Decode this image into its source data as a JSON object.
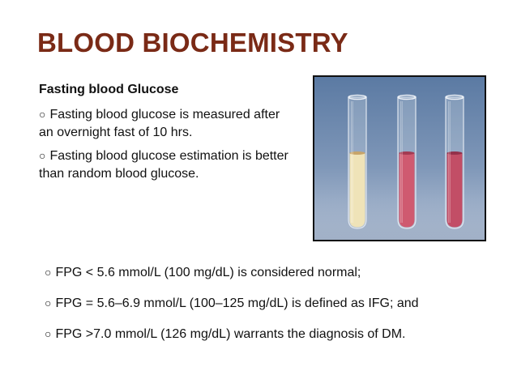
{
  "slide": {
    "title": "BLOOD BIOCHEMISTRY",
    "subheading": "Fasting blood Glucose",
    "bullet_symbol": "○",
    "left_points": [
      "Fasting blood glucose is measured after an overnight fast of 10 hrs.",
      "Fasting blood glucose estimation is better than random blood glucose."
    ],
    "bottom_points": [
      "FPG < 5.6 mmol/L (100 mg/dL) is considered normal;",
      "FPG = 5.6–6.9 mmol/L (100–125 mg/dL) is defined as IFG; and",
      "FPG >7.0 mmol/L (126 mg/dL) warrants the diagnosis of DM."
    ]
  },
  "photo": {
    "subject": "three-test-tubes-photo",
    "colors": {
      "backdrop_top": "#5b7aa3",
      "backdrop_bottom": "#b6c3d6",
      "tube_1_liquid": "#efe3b8",
      "tube_2_liquid": "#cf5a70",
      "tube_3_liquid": "#c24e66"
    }
  }
}
